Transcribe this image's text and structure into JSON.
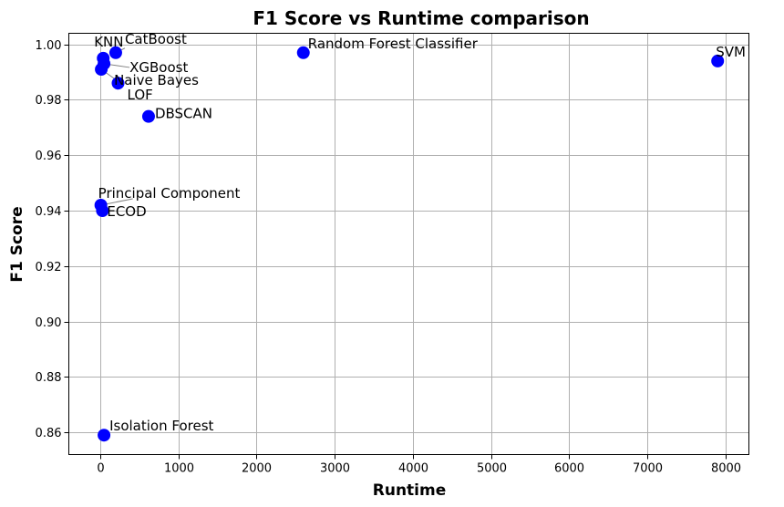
{
  "chart_data": {
    "type": "scatter",
    "title": "F1 Score vs Runtime comparison",
    "xlabel": "Runtime",
    "ylabel": "F1 Score",
    "xlim": [
      -400,
      8300
    ],
    "ylim": [
      0.852,
      1.004
    ],
    "xticks": [
      0,
      1000,
      2000,
      3000,
      4000,
      5000,
      6000,
      7000,
      8000
    ],
    "yticks": [
      0.86,
      0.88,
      0.9,
      0.92,
      0.94,
      0.96,
      0.98,
      1.0
    ],
    "xtick_labels": [
      "0",
      "1000",
      "2000",
      "3000",
      "4000",
      "5000",
      "6000",
      "7000",
      "8000"
    ],
    "ytick_labels": [
      "0.86",
      "0.88",
      "0.90",
      "0.92",
      "0.94",
      "0.96",
      "0.98",
      "1.00"
    ],
    "grid": true,
    "marker_color": "#0000ff",
    "points": [
      {
        "label": "KNN",
        "x": 40,
        "y": 0.995
      },
      {
        "label": "CatBoost",
        "x": 200,
        "y": 0.997
      },
      {
        "label": "XGBoost",
        "x": 50,
        "y": 0.993
      },
      {
        "label": "Naive Bayes",
        "x": 15,
        "y": 0.991
      },
      {
        "label": "LOF",
        "x": 230,
        "y": 0.986
      },
      {
        "label": "DBSCAN",
        "x": 620,
        "y": 0.974
      },
      {
        "label": "Random Forest Classifier",
        "x": 2600,
        "y": 0.997
      },
      {
        "label": "SVM",
        "x": 7900,
        "y": 0.994
      },
      {
        "label": "Principal Component",
        "x": 10,
        "y": 0.942
      },
      {
        "label": "ECOD",
        "x": 30,
        "y": 0.94
      },
      {
        "label": "Isolation Forest",
        "x": 50,
        "y": 0.859
      }
    ]
  }
}
